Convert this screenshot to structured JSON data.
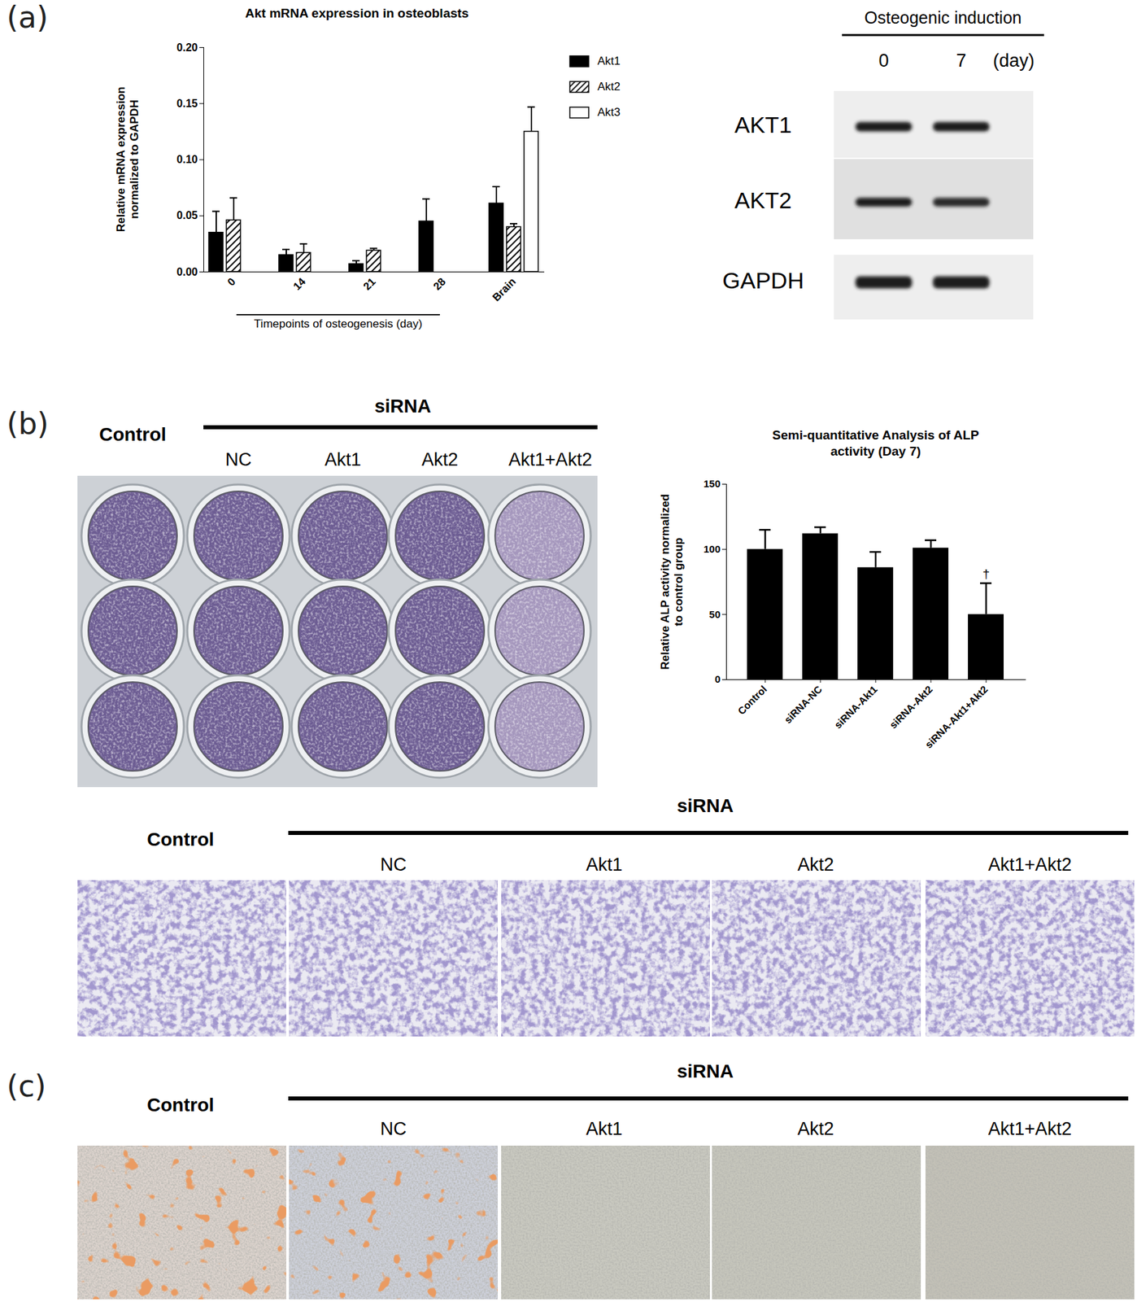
{
  "chart_data": [
    {
      "type": "bar",
      "title": "Akt mRNA expression in osteoblasts",
      "categories": [
        "0",
        "14",
        "21",
        "28",
        "Brain"
      ],
      "xlabel": "Timepoints of osteogenesis (day)",
      "ylabel": "Relative mRNA expression normalized to GAPDH",
      "series": [
        {
          "name": "Akt1",
          "color": "#000000",
          "values": [
            0.035,
            0.015,
            0.007,
            0.045,
            0.061
          ],
          "errors": [
            0.019,
            0.005,
            0.003,
            0.02,
            0.015
          ]
        },
        {
          "name": "Akt2",
          "color": "#000000",
          "values": [
            0.046,
            0.017,
            0.019,
            null,
            0.04
          ],
          "errors": [
            0.02,
            0.008,
            0.002,
            null,
            0.003
          ]
        },
        {
          "name": "Akt3",
          "color": "#ffffff",
          "values": [
            null,
            null,
            null,
            null,
            0.125
          ],
          "errors": [
            null,
            null,
            null,
            null,
            0.022
          ]
        }
      ],
      "ylim": [
        0,
        0.2
      ],
      "yticks": [
        {
          "value": 0,
          "label": "0.00"
        },
        0.05,
        {
          "value": 0.1,
          "label": "0.10"
        },
        0.15,
        {
          "value": 0.2,
          "label": "0.20"
        }
      ],
      "grid": false,
      "legend": "top-right"
    },
    {
      "type": "bar",
      "title": "Semi-quantitative Analysis of ALP activity (Day 7)",
      "categories": [
        "Control",
        "siRNA-NC",
        "siRNA-Akt1",
        "siRNA-Akt2",
        "siRNA-Akt1+Akt2"
      ],
      "values": [
        100,
        112,
        86,
        101,
        50
      ],
      "errors": [
        15,
        5,
        12,
        6,
        24
      ],
      "color": "#000000",
      "ylabel": "Relative ALP activity normalized to control group",
      "ylim": [
        0,
        150
      ],
      "yticks": [
        0,
        50,
        100,
        150
      ],
      "grid": false,
      "annotations": [
        {
          "x": "siRNA-Akt1+Akt2",
          "text": "†"
        }
      ]
    }
  ],
  "figure": {
    "panels": [
      {
        "letter": "(a)",
        "blot": {
          "header": "Osteogenic induction",
          "lanes": [
            "0",
            "7"
          ],
          "lane_unit": "(day)",
          "rows": [
            "AKT1",
            "AKT2",
            "GAPDH"
          ]
        }
      },
      {
        "letter": "(b)",
        "plate": {
          "control": "Control",
          "group": "siRNA",
          "columns": [
            "NC",
            "Akt1",
            "Akt2",
            "Akt1+Akt2"
          ]
        },
        "micrographs": {
          "control": "Control",
          "group": "siRNA",
          "columns": [
            "NC",
            "Akt1",
            "Akt2",
            "Akt1+Akt2"
          ]
        }
      },
      {
        "letter": "(c)",
        "micrographs": {
          "control": "Control",
          "group": "siRNA",
          "columns": [
            "NC",
            "Akt1",
            "Akt2",
            "Akt1+Akt2"
          ]
        }
      }
    ]
  }
}
